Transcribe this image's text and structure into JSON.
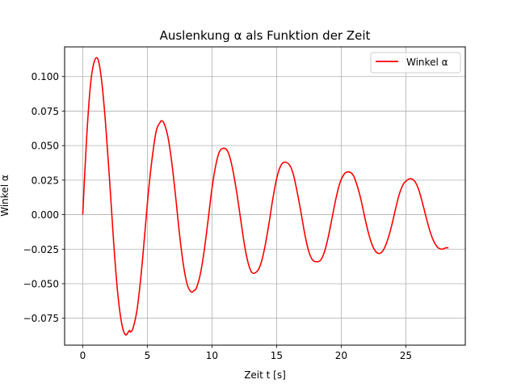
{
  "chart_data": {
    "type": "line",
    "title": "Auslenkung α als Funktion der Zeit",
    "xlabel": "Zeit t [s]",
    "ylabel": "Winkel α",
    "xlim": [
      -1.4,
      29.6
    ],
    "ylim": [
      -0.0945,
      0.1215
    ],
    "xticks": [
      0,
      5,
      10,
      15,
      20,
      25
    ],
    "xtick_labels": [
      "0",
      "5",
      "10",
      "15",
      "20",
      "25"
    ],
    "yticks": [
      -0.075,
      -0.05,
      -0.025,
      0.0,
      0.025,
      0.05,
      0.075,
      0.1
    ],
    "ytick_labels": [
      "−0.075",
      "−0.050",
      "−0.025",
      "0.000",
      "0.025",
      "0.050",
      "0.075",
      "0.100"
    ],
    "grid": true,
    "legend_position": "top-right",
    "series": [
      {
        "name": "Winkel α",
        "color": "#ff0000",
        "x": [
          0,
          0.3,
          0.6,
          0.9,
          1.2,
          1.5,
          1.8,
          2.1,
          2.4,
          2.7,
          3.0,
          3.3,
          3.6,
          3.7,
          3.9,
          4.2,
          4.5,
          4.8,
          5.1,
          5.4,
          5.7,
          6.0,
          6.1,
          6.3,
          6.6,
          6.9,
          7.2,
          7.5,
          7.8,
          8.1,
          8.4,
          8.6,
          8.8,
          9.1,
          9.4,
          9.7,
          10.0,
          10.3,
          10.6,
          11.0,
          11.3,
          11.6,
          11.9,
          12.2,
          12.5,
          12.8,
          13.1,
          13.5,
          13.8,
          14.1,
          14.4,
          14.7,
          15.0,
          15.3,
          15.6,
          16.0,
          16.3,
          16.6,
          16.9,
          17.2,
          17.5,
          17.8,
          18.1,
          18.4,
          18.7,
          19.0,
          19.3,
          19.6,
          19.9,
          20.2,
          20.5,
          20.9,
          21.2,
          21.5,
          21.8,
          22.1,
          22.4,
          22.7,
          23.0,
          23.3,
          23.6,
          23.9,
          24.2,
          24.5,
          24.8,
          25.1,
          25.4,
          25.7,
          26.0,
          26.3,
          26.6,
          26.9,
          27.2,
          27.5,
          27.8,
          28.1,
          28.3
        ],
        "y": [
          0.0,
          0.055,
          0.094,
          0.111,
          0.112,
          0.094,
          0.062,
          0.022,
          -0.021,
          -0.056,
          -0.078,
          -0.087,
          -0.084,
          -0.085,
          -0.082,
          -0.069,
          -0.045,
          -0.014,
          0.018,
          0.043,
          0.061,
          0.067,
          0.068,
          0.066,
          0.056,
          0.037,
          0.012,
          -0.015,
          -0.037,
          -0.051,
          -0.056,
          -0.055,
          -0.053,
          -0.043,
          -0.026,
          -0.004,
          0.019,
          0.036,
          0.046,
          0.048,
          0.044,
          0.033,
          0.017,
          -0.002,
          -0.021,
          -0.035,
          -0.042,
          -0.041,
          -0.035,
          -0.023,
          -0.007,
          0.011,
          0.026,
          0.035,
          0.038,
          0.036,
          0.029,
          0.016,
          0.001,
          -0.015,
          -0.027,
          -0.033,
          -0.034,
          -0.033,
          -0.027,
          -0.016,
          -0.002,
          0.012,
          0.023,
          0.029,
          0.031,
          0.029,
          0.022,
          0.012,
          -0.001,
          -0.013,
          -0.022,
          -0.027,
          -0.028,
          -0.025,
          -0.018,
          -0.008,
          0.004,
          0.015,
          0.022,
          0.025,
          0.026,
          0.024,
          0.018,
          0.008,
          -0.003,
          -0.013,
          -0.02,
          -0.024,
          -0.025,
          -0.024,
          -0.024
        ]
      }
    ]
  }
}
